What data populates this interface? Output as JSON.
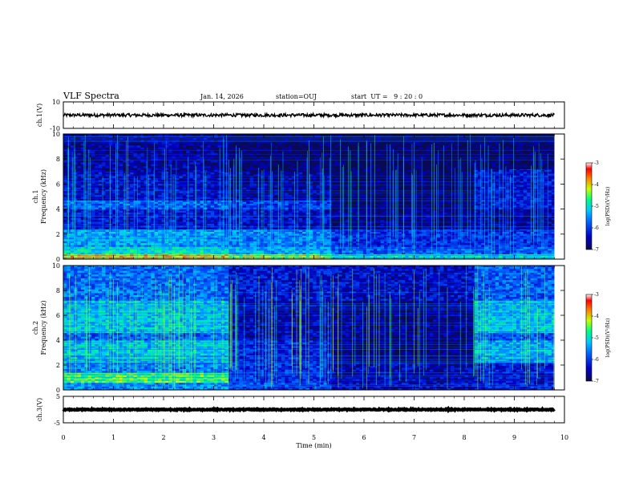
{
  "header": {
    "title": "VLF Spectra",
    "date": "Jan. 14, 2026",
    "station": "station=OUJ",
    "start": "start  UT =   9 : 20 : 0"
  },
  "chart_data": [
    {
      "type": "line",
      "title": "",
      "xlabel": "",
      "ylabel": "ch.1(V)",
      "xlim": [
        0,
        10
      ],
      "ylim": [
        -10,
        10
      ],
      "yticks": [
        -10,
        10
      ],
      "series": [
        {
          "values": [
            {
              "x": 0,
              "y": 0
            },
            {
              "x": 1,
              "y": 0
            },
            {
              "x": 2,
              "y": 0
            },
            {
              "x": 3,
              "y": 0
            },
            {
              "x": 4,
              "y": 0
            },
            {
              "x": 5,
              "y": 0
            },
            {
              "x": 6,
              "y": 0
            },
            {
              "x": 7,
              "y": 0
            },
            {
              "x": 8,
              "y": 0
            },
            {
              "x": 9,
              "y": 0
            },
            {
              "x": 9.8,
              "y": 0
            }
          ]
        }
      ],
      "noise_amplitude": 1.2
    },
    {
      "type": "heatmap",
      "title": "",
      "xlabel": "",
      "ylabel": [
        "ch.1",
        "Frequency  (kHz)"
      ],
      "xlim": [
        0,
        10
      ],
      "ylim": [
        0,
        10
      ],
      "yticks": [
        0,
        2,
        4,
        6,
        8,
        10
      ],
      "colorbar": {
        "label": "log(PSD)(V²/Hz)",
        "ticks": [
          -3,
          -4,
          -5,
          -6,
          -7
        ],
        "range": [
          -7,
          -3
        ]
      },
      "segments": [
        {
          "t0": 0,
          "t1": 3.3,
          "bands": [
            {
              "f0": 0,
              "f1": 0.4,
              "v": -4.0
            },
            {
              "f0": 0.4,
              "f1": 1.0,
              "v": -5.0
            },
            {
              "f0": 1.0,
              "f1": 2.4,
              "v": -5.4
            },
            {
              "f0": 2.4,
              "f1": 4.0,
              "v": -6.3
            },
            {
              "f0": 4.0,
              "f1": 4.7,
              "v": -5.8
            },
            {
              "f0": 4.7,
              "f1": 7.0,
              "v": -6.4
            },
            {
              "f0": 7.0,
              "f1": 10.0,
              "v": -6.6
            }
          ]
        },
        {
          "t0": 3.3,
          "t1": 5.35,
          "bands": [
            {
              "f0": 0,
              "f1": 0.4,
              "v": -4.3
            },
            {
              "f0": 0.4,
              "f1": 1.0,
              "v": -5.3
            },
            {
              "f0": 1.0,
              "f1": 2.4,
              "v": -5.6
            },
            {
              "f0": 2.4,
              "f1": 4.0,
              "v": -6.4
            },
            {
              "f0": 4.0,
              "f1": 4.7,
              "v": -6.0
            },
            {
              "f0": 4.7,
              "f1": 7.0,
              "v": -6.6
            },
            {
              "f0": 7.0,
              "f1": 10.0,
              "v": -6.9
            }
          ]
        },
        {
          "t0": 5.35,
          "t1": 8.2,
          "bands": [
            {
              "f0": 0,
              "f1": 0.4,
              "v": -5.0
            },
            {
              "f0": 0.4,
              "f1": 1.0,
              "v": -5.8
            },
            {
              "f0": 1.0,
              "f1": 2.4,
              "v": -6.1
            },
            {
              "f0": 2.4,
              "f1": 4.0,
              "v": -6.7
            },
            {
              "f0": 4.0,
              "f1": 7.0,
              "v": -6.9
            },
            {
              "f0": 7.0,
              "f1": 10.0,
              "v": -6.95
            }
          ]
        },
        {
          "t0": 8.2,
          "t1": 9.8,
          "bands": [
            {
              "f0": 0,
              "f1": 0.4,
              "v": -5.0
            },
            {
              "f0": 0.4,
              "f1": 1.0,
              "v": -5.8
            },
            {
              "f0": 1.0,
              "f1": 2.4,
              "v": -6.1
            },
            {
              "f0": 2.4,
              "f1": 4.0,
              "v": -6.6
            },
            {
              "f0": 4.0,
              "f1": 7.2,
              "v": -6.3
            },
            {
              "f0": 7.2,
              "f1": 10.0,
              "v": -6.9
            }
          ]
        }
      ]
    },
    {
      "type": "heatmap",
      "title": "",
      "xlabel": "",
      "ylabel": [
        "ch.2",
        "Frequency  (kHz)"
      ],
      "xlim": [
        0,
        10
      ],
      "ylim": [
        0,
        10
      ],
      "yticks": [
        0,
        2,
        4,
        6,
        8,
        10
      ],
      "colorbar": {
        "label": "log(PSD)(V²/Hz)",
        "ticks": [
          -3,
          -4,
          -5,
          -6,
          -7
        ],
        "range": [
          -7,
          -3
        ]
      },
      "segments": [
        {
          "t0": 0,
          "t1": 3.3,
          "bands": [
            {
              "f0": 0,
              "f1": 0.6,
              "v": -5.5
            },
            {
              "f0": 0.6,
              "f1": 1.4,
              "v": -4.6
            },
            {
              "f0": 1.4,
              "f1": 2.2,
              "v": -5.6
            },
            {
              "f0": 2.2,
              "f1": 4.0,
              "v": -5.2
            },
            {
              "f0": 4.0,
              "f1": 4.6,
              "v": -5.8
            },
            {
              "f0": 4.6,
              "f1": 7.2,
              "v": -5.2
            },
            {
              "f0": 7.2,
              "f1": 10.0,
              "v": -5.7
            }
          ]
        },
        {
          "t0": 3.3,
          "t1": 5.35,
          "bands": [
            {
              "f0": 0,
              "f1": 0.6,
              "v": -5.9
            },
            {
              "f0": 0.6,
              "f1": 2.2,
              "v": -6.1
            },
            {
              "f0": 2.2,
              "f1": 4.0,
              "v": -6.2
            },
            {
              "f0": 4.0,
              "f1": 7.2,
              "v": -6.5
            },
            {
              "f0": 7.2,
              "f1": 10.0,
              "v": -6.3
            }
          ]
        },
        {
          "t0": 5.35,
          "t1": 8.2,
          "bands": [
            {
              "f0": 0,
              "f1": 0.6,
              "v": -6.4
            },
            {
              "f0": 0.6,
              "f1": 2.2,
              "v": -6.5
            },
            {
              "f0": 2.2,
              "f1": 4.0,
              "v": -6.8
            },
            {
              "f0": 4.0,
              "f1": 7.2,
              "v": -6.7
            },
            {
              "f0": 7.2,
              "f1": 10.0,
              "v": -6.4
            }
          ]
        },
        {
          "t0": 8.2,
          "t1": 9.8,
          "bands": [
            {
              "f0": 0,
              "f1": 0.6,
              "v": -6.2
            },
            {
              "f0": 0.6,
              "f1": 2.2,
              "v": -6.3
            },
            {
              "f0": 2.2,
              "f1": 4.0,
              "v": -5.3
            },
            {
              "f0": 4.0,
              "f1": 4.6,
              "v": -5.9
            },
            {
              "f0": 4.6,
              "f1": 7.2,
              "v": -5.2
            },
            {
              "f0": 7.2,
              "f1": 10.0,
              "v": -5.8
            }
          ]
        }
      ]
    },
    {
      "type": "line",
      "title": "",
      "xlabel": "Time  (min)",
      "ylabel": "ch.3(V)",
      "xlim": [
        0,
        10
      ],
      "ylim": [
        -5,
        5
      ],
      "yticks": [
        -5,
        5
      ],
      "xticks": [
        0,
        1,
        2,
        3,
        4,
        5,
        6,
        7,
        8,
        9,
        10
      ],
      "series": [
        {
          "values": [
            {
              "x": 0,
              "y": 0
            },
            {
              "x": 2,
              "y": 0
            },
            {
              "x": 4,
              "y": 0
            },
            {
              "x": 6,
              "y": 0
            },
            {
              "x": 8,
              "y": 0
            },
            {
              "x": 9.8,
              "y": 0
            }
          ]
        }
      ],
      "noise_amplitude": 0.2
    }
  ],
  "colors": {
    "trace": "#000000",
    "colormap": [
      "#0a0a50",
      "#0000c8",
      "#0064ff",
      "#00c8ff",
      "#00ff80",
      "#c8ff00",
      "#ff8000",
      "#ff0000",
      "#ffffff"
    ]
  }
}
